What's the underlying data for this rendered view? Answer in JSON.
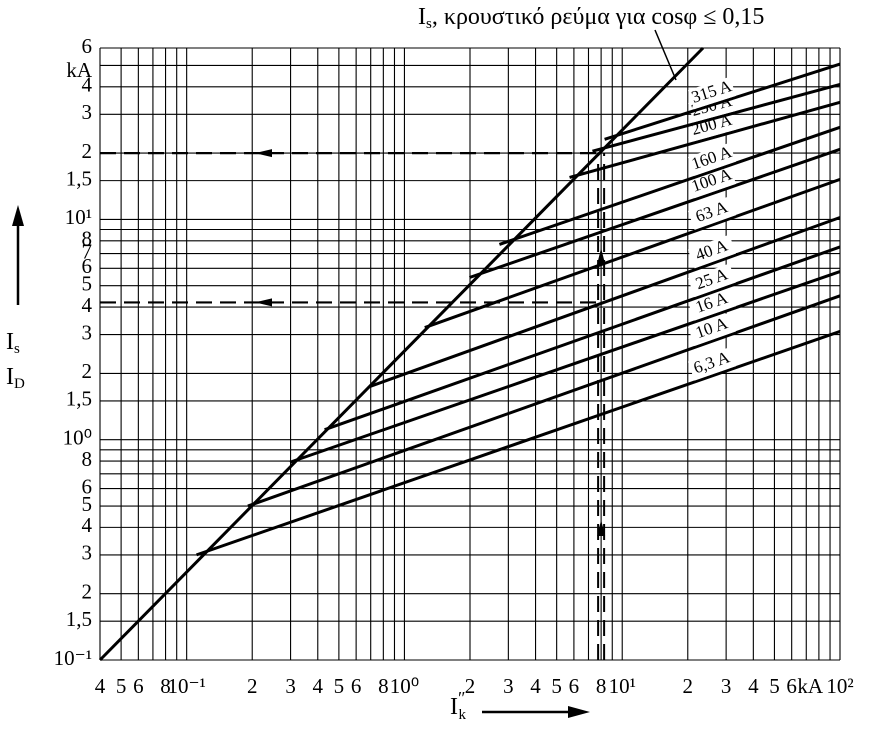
{
  "chart_data": {
    "type": "line",
    "annotation": {
      "main": "I",
      "sub": "s",
      "rest": ", κρουστικό ρεύμα για cosφ ≤ 0,15"
    },
    "x_label": {
      "main": "I",
      "sup": "″",
      "sub": "k"
    },
    "y_label": [
      {
        "main": "I",
        "sub": "s"
      },
      {
        "main": "I",
        "sub": "D"
      }
    ],
    "x_unit": "kA",
    "y_unit": "kA",
    "xscale": "log",
    "yscale": "log",
    "grid": true,
    "color": "#000000",
    "xlim": [
      0.04,
      100
    ],
    "ylim": [
      0.1,
      60
    ],
    "xticks": [
      {
        "value": 0.04,
        "label": "4"
      },
      {
        "value": 0.05,
        "label": "5"
      },
      {
        "value": 0.06,
        "label": "6"
      },
      {
        "value": 0.08,
        "label": "8"
      },
      {
        "value": 0.1,
        "label": "10⁻¹"
      },
      {
        "value": 0.2,
        "label": "2"
      },
      {
        "value": 0.3,
        "label": "3"
      },
      {
        "value": 0.4,
        "label": "4"
      },
      {
        "value": 0.5,
        "label": "5"
      },
      {
        "value": 0.6,
        "label": "6"
      },
      {
        "value": 0.8,
        "label": "8"
      },
      {
        "value": 1,
        "label": "10⁰"
      },
      2,
      3,
      4,
      5,
      6,
      8,
      {
        "value": 10,
        "label": "10¹"
      },
      {
        "value": 20,
        "label": "2"
      },
      {
        "value": 30,
        "label": "3"
      },
      {
        "value": 40,
        "label": "4"
      },
      {
        "value": 50,
        "label": "5"
      },
      {
        "value": 60,
        "label": "6"
      },
      {
        "value": 100,
        "label": "10²"
      }
    ],
    "xminor": [
      0.07,
      0.09,
      0.7,
      0.9,
      7,
      9,
      70,
      80,
      90
    ],
    "yticks": [
      {
        "value": 0.1,
        "label": "10⁻¹"
      },
      {
        "value": 0.15,
        "label": "1,5"
      },
      {
        "value": 0.2,
        "label": "2"
      },
      {
        "value": 0.3,
        "label": "3"
      },
      {
        "value": 0.4,
        "label": "4"
      },
      {
        "value": 0.5,
        "label": "5"
      },
      {
        "value": 0.6,
        "label": "6"
      },
      {
        "value": 0.8,
        "label": "8"
      },
      {
        "value": 1,
        "label": "10⁰"
      },
      {
        "value": 1.5,
        "label": "1,5"
      },
      2,
      3,
      4,
      5,
      6,
      7,
      8,
      {
        "value": 10,
        "label": "10¹"
      },
      {
        "value": 15,
        "label": "1,5"
      },
      {
        "value": 20,
        "label": "2"
      },
      {
        "value": 30,
        "label": "3"
      },
      {
        "value": 40,
        "label": "4"
      },
      {
        "value": 60,
        "label": "6"
      }
    ],
    "yminor": [
      0.7,
      0.9,
      9,
      50
    ],
    "envelope": {
      "x": [
        0.04,
        23.5
      ],
      "values": [
        0.1,
        60
      ]
    },
    "series": [
      {
        "name": "6,3 A",
        "x": [
          0.111,
          100
        ],
        "values": [
          0.3,
          3.1
        ]
      },
      {
        "name": "10 A",
        "x": [
          0.191,
          100
        ],
        "values": [
          0.5,
          4.5
        ]
      },
      {
        "name": "16 A",
        "x": [
          0.298,
          100
        ],
        "values": [
          0.79,
          5.8
        ]
      },
      {
        "name": "25 A",
        "x": [
          0.43,
          100
        ],
        "values": [
          1.11,
          7.5
        ]
      },
      {
        "name": "40 A",
        "x": [
          0.69,
          100
        ],
        "values": [
          1.74,
          10.2
        ]
      },
      {
        "name": "63 A",
        "x": [
          1.24,
          100
        ],
        "values": [
          3.23,
          15.2
        ]
      },
      {
        "name": "100 A",
        "x": [
          1.99,
          100
        ],
        "values": [
          5.45,
          20.8
        ]
      },
      {
        "name": "160 A",
        "x": [
          2.73,
          100
        ],
        "values": [
          7.7,
          26.2
        ]
      },
      {
        "name": "200 A",
        "x": [
          5.73,
          100
        ],
        "values": [
          15.5,
          34
        ]
      },
      {
        "name": "250 A",
        "x": [
          7.3,
          100
        ],
        "values": [
          20.4,
          41
        ]
      },
      {
        "name": "315 A",
        "x": [
          8.3,
          100
        ],
        "values": [
          23.1,
          50.7
        ]
      }
    ],
    "reference_lines": [
      {
        "x": 8,
        "y": 20
      },
      {
        "x": 8,
        "y": 4.2
      }
    ]
  }
}
